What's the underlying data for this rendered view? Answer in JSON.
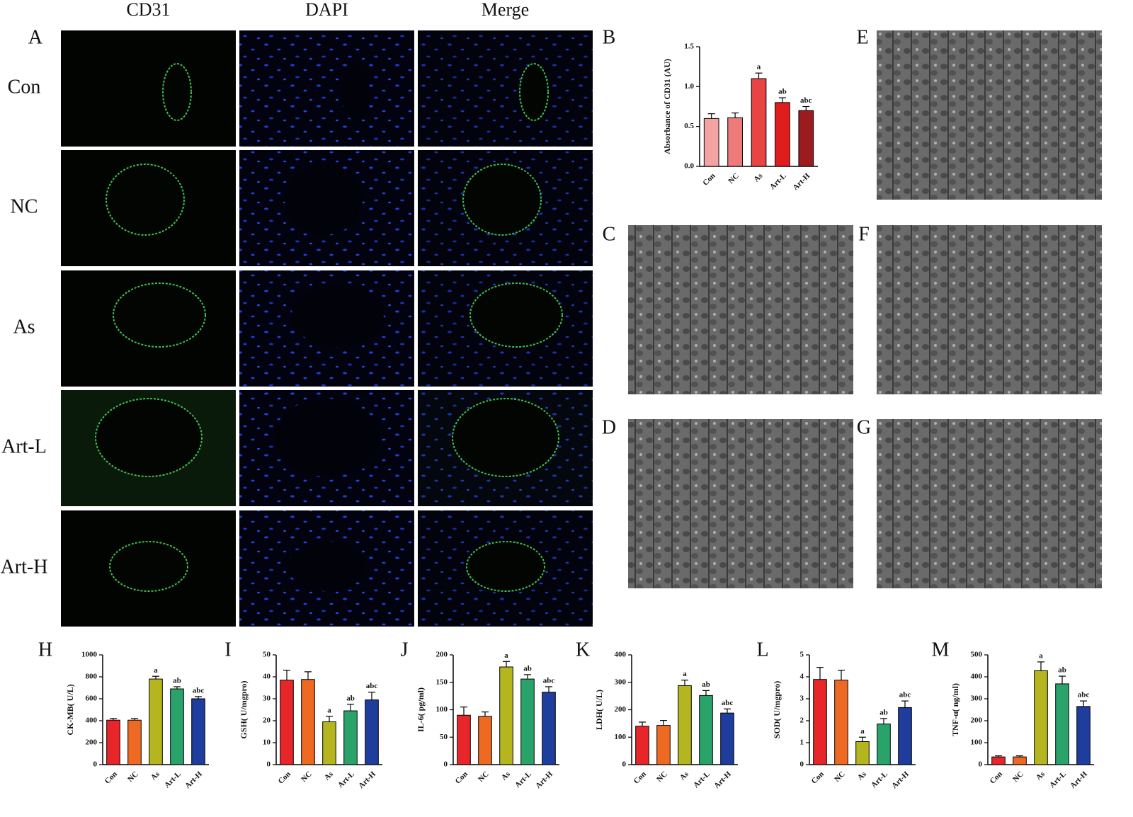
{
  "figure": {
    "column_headers": [
      "CD31",
      "DAPI",
      "Merge"
    ],
    "row_labels": [
      "Con",
      "NC",
      "As",
      "Art-L",
      "Art-H"
    ],
    "panel_labels": [
      "A",
      "B",
      "C",
      "D",
      "E",
      "F",
      "G",
      "H",
      "I",
      "J",
      "K",
      "L",
      "M"
    ]
  },
  "chart_data": [
    {
      "type": "bar",
      "ylabel": "Absorbance of CD31 (AU)",
      "categories": [
        "Con",
        "NC",
        "As",
        "Art-L",
        "Art-H"
      ],
      "values": [
        0.6,
        0.61,
        1.1,
        0.8,
        0.7
      ],
      "errors": [
        0.06,
        0.06,
        0.07,
        0.06,
        0.05
      ],
      "annotations": [
        null,
        null,
        "a",
        "ab",
        "abc"
      ],
      "colors": [
        "#f4a3a3",
        "#ee7a7a",
        "#e84444",
        "#e01c1c",
        "#9b1b1f"
      ],
      "ylim": [
        0,
        1.5
      ],
      "yticks": [
        {
          "value": 0,
          "label": "0.0"
        },
        0.5,
        {
          "value": 1,
          "label": "1.0"
        },
        1.5
      ]
    },
    {
      "type": "bar",
      "ylabel": "CK-MB( U/L)",
      "categories": [
        "Con",
        "NC",
        "As",
        "Art-L",
        "Art-H"
      ],
      "values": [
        405,
        405,
        780,
        690,
        600
      ],
      "errors": [
        15,
        15,
        25,
        20,
        20
      ],
      "annotations": [
        null,
        null,
        "a",
        "ab",
        "abc"
      ],
      "colors": [
        "#e8262a",
        "#ee6a22",
        "#b5b51f",
        "#2aa36b",
        "#1f3d9c"
      ],
      "ylim": [
        0,
        1000
      ],
      "yticks": [
        0,
        200,
        400,
        600,
        800,
        1000
      ]
    },
    {
      "type": "bar",
      "ylabel": "GSH( U/mgpro)",
      "categories": [
        "Con",
        "NC",
        "As",
        "Art-L",
        "Art-H"
      ],
      "values": [
        38.5,
        38.8,
        19.5,
        24.5,
        29.5
      ],
      "errors": [
        4.5,
        3.5,
        2.5,
        3,
        3.5
      ],
      "annotations": [
        null,
        null,
        "a",
        "ab",
        "abc"
      ],
      "colors": [
        "#e8262a",
        "#ee6a22",
        "#b5b51f",
        "#2aa36b",
        "#1f3d9c"
      ],
      "ylim": [
        0,
        50
      ],
      "yticks": [
        0,
        10,
        20,
        30,
        40,
        50
      ]
    },
    {
      "type": "bar",
      "ylabel": "IL-6( pg/ml)",
      "categories": [
        "Con",
        "NC",
        "As",
        "Art-L",
        "Art-H"
      ],
      "values": [
        90,
        88,
        178,
        156,
        132
      ],
      "errors": [
        15,
        8,
        10,
        8,
        10
      ],
      "annotations": [
        null,
        null,
        "a",
        "ab",
        "abc"
      ],
      "colors": [
        "#e8262a",
        "#ee6a22",
        "#b5b51f",
        "#2aa36b",
        "#1f3d9c"
      ],
      "ylim": [
        0,
        200
      ],
      "yticks": [
        0,
        50,
        100,
        150,
        200
      ]
    },
    {
      "type": "bar",
      "ylabel": "LDH( U/L)",
      "categories": [
        "Con",
        "NC",
        "As",
        "Art-L",
        "Art-H"
      ],
      "values": [
        140,
        143,
        288,
        252,
        188
      ],
      "errors": [
        15,
        18,
        20,
        18,
        15
      ],
      "annotations": [
        null,
        null,
        "a",
        "ab",
        "abc"
      ],
      "colors": [
        "#e8262a",
        "#ee6a22",
        "#b5b51f",
        "#2aa36b",
        "#1f3d9c"
      ],
      "ylim": [
        0,
        400
      ],
      "yticks": [
        0,
        100,
        200,
        300,
        400
      ]
    },
    {
      "type": "bar",
      "ylabel": "SOD( U/mgpro)",
      "categories": [
        "Con",
        "NC",
        "As",
        "Art-L",
        "Art-H"
      ],
      "values": [
        3.88,
        3.85,
        1.05,
        1.85,
        2.6
      ],
      "errors": [
        0.55,
        0.45,
        0.2,
        0.25,
        0.3
      ],
      "annotations": [
        null,
        null,
        "a",
        "ab",
        "abc"
      ],
      "colors": [
        "#e8262a",
        "#ee6a22",
        "#b5b51f",
        "#2aa36b",
        "#1f3d9c"
      ],
      "ylim": [
        0,
        5
      ],
      "yticks": [
        0,
        1,
        2,
        3,
        4,
        5
      ]
    },
    {
      "type": "bar",
      "ylabel": "TNF-α( ng/ml)",
      "categories": [
        "Con",
        "NC",
        "As",
        "Art-L",
        "Art-H"
      ],
      "values": [
        35,
        35,
        428,
        368,
        265
      ],
      "errors": [
        5,
        5,
        40,
        35,
        25
      ],
      "annotations": [
        null,
        null,
        "a",
        "ab",
        "abc"
      ],
      "colors": [
        "#e8262a",
        "#ee6a22",
        "#b5b51f",
        "#2aa36b",
        "#1f3d9c"
      ],
      "ylim": [
        0,
        500
      ],
      "yticks": [
        0,
        100,
        200,
        300,
        400,
        500
      ]
    }
  ]
}
